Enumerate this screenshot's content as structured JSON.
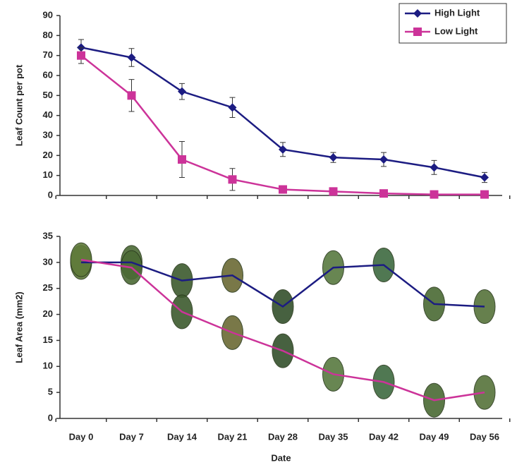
{
  "chart_data": [
    {
      "type": "line",
      "y_label": "Leaf Count per pot",
      "ylim": [
        0,
        90
      ],
      "yticks": [
        0,
        10,
        20,
        30,
        40,
        50,
        60,
        70,
        80,
        90
      ],
      "legend": "upper right",
      "series": [
        {
          "name": "High Light",
          "color": "#1c1c82",
          "marker": "diamond",
          "values": [
            74,
            69,
            52,
            44,
            23,
            19,
            18,
            14,
            9
          ],
          "errors": [
            4,
            4.5,
            4,
            5,
            3.5,
            2.5,
            3.5,
            3.5,
            2.5
          ]
        },
        {
          "name": "Low Light",
          "color": "#cc3399",
          "marker": "square",
          "values": [
            70,
            50,
            18,
            8,
            3,
            2,
            1,
            0.5,
            0.5
          ],
          "errors": [
            4,
            8,
            9,
            5.5,
            1,
            0.5,
            0.5,
            0.3,
            0.3
          ]
        }
      ]
    },
    {
      "type": "line",
      "y_label": "Leaf Area (mm2)",
      "x_label": "Date",
      "ylim": [
        0,
        35
      ],
      "yticks": [
        0,
        5,
        10,
        15,
        20,
        25,
        30,
        35
      ],
      "categories": [
        "Day 0",
        "Day 7",
        "Day 14",
        "Day 21",
        "Day 28",
        "Day 35",
        "Day 42",
        "Day 49",
        "Day 56"
      ],
      "series": [
        {
          "name": "High Light",
          "color": "#1c1c82",
          "values": [
            30,
            30,
            26.5,
            27.5,
            21.5,
            29,
            29.5,
            22,
            21.5
          ]
        },
        {
          "name": "Low Light",
          "color": "#cc3399",
          "values": [
            30.5,
            29,
            20.5,
            16.5,
            13,
            8.5,
            7,
            3.5,
            5
          ]
        }
      ]
    }
  ]
}
